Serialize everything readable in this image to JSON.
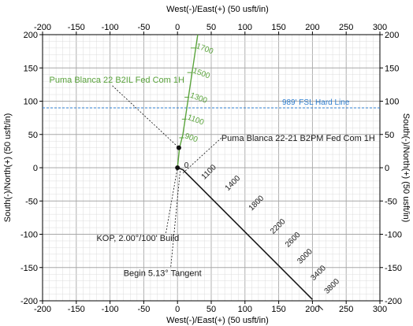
{
  "chart_data": {
    "type": "line",
    "xlabel": "West(-)/East(+) (50 usft/in)",
    "ylabel": "South(-)/North(+) (50 usft/in)",
    "xlim": [
      -200,
      300
    ],
    "ylim": [
      -200,
      200
    ],
    "xticks": [
      -200,
      -150,
      -100,
      -50,
      0,
      50,
      100,
      150,
      200,
      250,
      300
    ],
    "yticks": [
      -200,
      -150,
      -100,
      -50,
      0,
      50,
      100,
      150,
      200
    ],
    "grid": true,
    "colors": {
      "green": "#5aa33c",
      "black": "#1a1a1a",
      "blue": "#2f7fd0"
    },
    "hard_line": {
      "label": "989' FSL Hard Line",
      "y": 90
    },
    "series": [
      {
        "name": "Puma Blanca 22 B2IL Fed Com 1H",
        "color": "green",
        "points": [
          [
            0,
            0
          ],
          [
            3,
            30
          ],
          [
            8,
            50
          ],
          [
            30,
            200
          ]
        ],
        "md_labels": [
          {
            "text": "900",
            "x": 10,
            "y": 45
          },
          {
            "text": "1100",
            "x": 14,
            "y": 73
          },
          {
            "text": "1300",
            "x": 18,
            "y": 106
          },
          {
            "text": "1500",
            "x": 22,
            "y": 143
          },
          {
            "text": "1700",
            "x": 27,
            "y": 180
          }
        ]
      },
      {
        "name": "Puma Blanca 22-21 B2PM Fed Com 1H",
        "color": "black",
        "points": [
          [
            0,
            0
          ],
          [
            8,
            -3
          ],
          [
            200,
            -198
          ]
        ],
        "md_labels": [
          {
            "text": "0",
            "x": 10,
            "y": 0
          },
          {
            "text": "1100",
            "x": 40,
            "y": -18
          },
          {
            "text": "1400",
            "x": 75,
            "y": -35
          },
          {
            "text": "1800",
            "x": 110,
            "y": -65
          },
          {
            "text": "2200",
            "x": 142,
            "y": -100
          },
          {
            "text": "2600",
            "x": 164,
            "y": -120
          },
          {
            "text": "3000",
            "x": 182,
            "y": -145
          },
          {
            "text": "3400",
            "x": 202,
            "y": -170
          },
          {
            "text": "3800",
            "x": 222,
            "y": -190
          }
        ]
      }
    ],
    "surface_points": [
      {
        "x": 2,
        "y": 30
      },
      {
        "x": 0,
        "y": 0
      }
    ],
    "annotations": [
      {
        "text": "Puma Blanca 22 B2IL Fed Com 1H",
        "color": "green",
        "label_x": -190,
        "label_y": 128,
        "target_x": 2,
        "target_y": 30
      },
      {
        "text": "Puma Blanca 22-21 B2PM Fed Com 1H",
        "color": "black",
        "label_x": 65,
        "label_y": 40,
        "target_x": 8,
        "target_y": -8
      },
      {
        "text": "KOP, 2.00°/100' Build",
        "color": "black",
        "label_x": -120,
        "label_y": -110,
        "target_x": 0,
        "target_y": 0
      },
      {
        "text": "Begin 5.13° Tangent",
        "color": "black",
        "label_x": -80,
        "label_y": -163,
        "target_x": 4,
        "target_y": -4
      }
    ]
  }
}
